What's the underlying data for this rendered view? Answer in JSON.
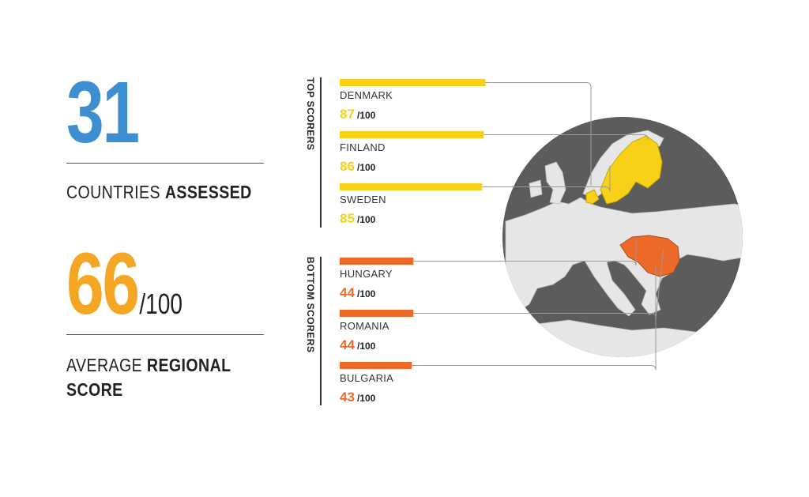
{
  "stats": {
    "countries_value": "31",
    "countries_label_normal": "COUNTRIES ",
    "countries_label_bold": "ASSESSED",
    "average_value": "66",
    "average_suffix": "/100",
    "average_label_normal": "AVERAGE ",
    "average_label_bold_1": "REGIONAL",
    "average_label_bold_2": "SCORE"
  },
  "groups": {
    "top_label": "TOP SCORERS",
    "bottom_label": "BOTTOM SCORERS"
  },
  "colors": {
    "blue": "#3d8fd1",
    "orange_stat": "#f5a623",
    "top": "#f7d117",
    "bottom": "#ee6a2a",
    "globe": "#5c5c5c",
    "land": "#e8e8e8"
  },
  "chart_data": {
    "type": "bar",
    "scale_max": 100,
    "score_suffix": "/100",
    "top": [
      {
        "country": "DENMARK",
        "score": 87
      },
      {
        "country": "FINLAND",
        "score": 86
      },
      {
        "country": "SWEDEN",
        "score": 85
      }
    ],
    "bottom": [
      {
        "country": "HUNGARY",
        "score": 44
      },
      {
        "country": "ROMANIA",
        "score": 44
      },
      {
        "country": "BULGARIA",
        "score": 43
      }
    ]
  }
}
